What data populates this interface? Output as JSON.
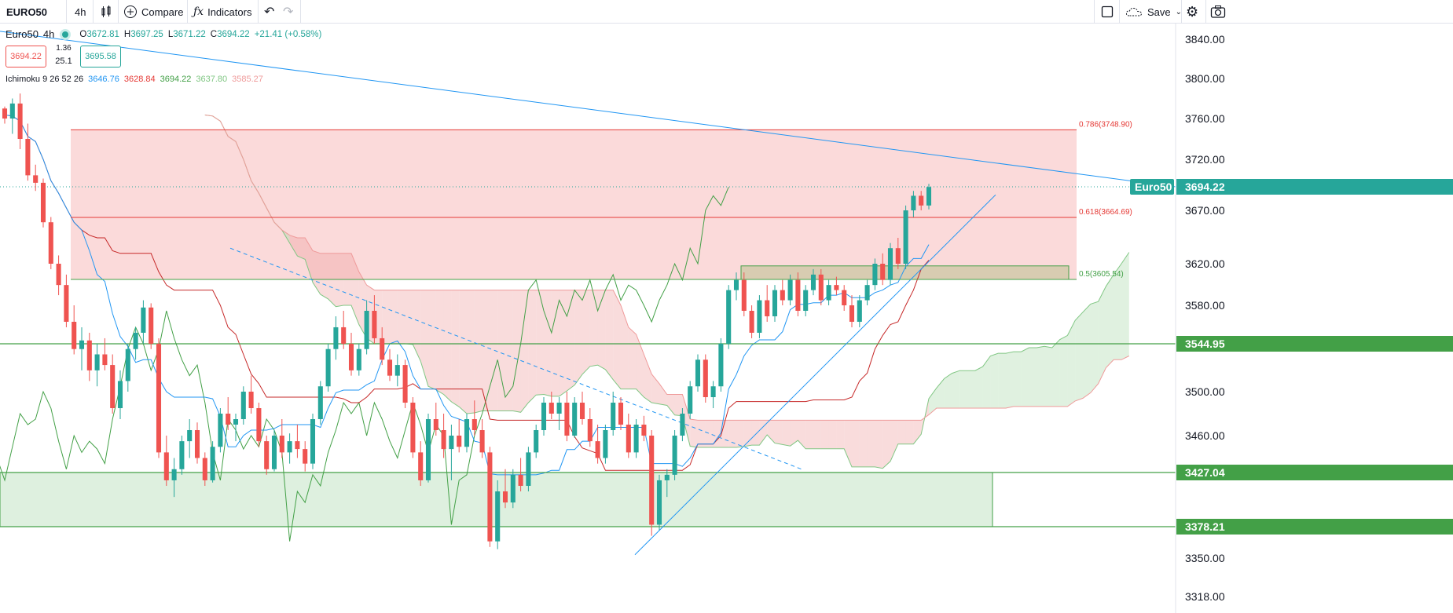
{
  "toolbar": {
    "symbol": "EURO50",
    "interval": "4h",
    "compare_label": "Compare",
    "indicators_label": "Indicators",
    "save_label": "Save"
  },
  "legend": {
    "name": "Euro50",
    "interval": "4h",
    "o_label": "O",
    "o": "3672.81",
    "h_label": "H",
    "h": "3697.25",
    "l_label": "L",
    "l": "3671.22",
    "c_label": "C",
    "c": "3694.22",
    "change": "+21.41 (+0.58%)",
    "bid": "3694.22",
    "spread": "1.36",
    "spread2": "25.1",
    "ask": "3695.58",
    "ichimoku_label": "Ichimoku 9 26 52 26",
    "ichimoku_values": [
      "3646.76",
      "3628.84",
      "3694.22",
      "3637.80",
      "3585.27"
    ],
    "ichimoku_colors": [
      "#2196f3",
      "#e53935",
      "#43a047",
      "#81c784",
      "#ef9a9a"
    ]
  },
  "chart_data": {
    "type": "candlestick",
    "symbol": "Euro50",
    "interval": "4h",
    "y_axis_ticks": [
      3840,
      3800,
      3760,
      3720,
      3670,
      3620,
      3580,
      3500,
      3460,
      3350,
      3318
    ],
    "y_axis_tick_labels": [
      "3840.00",
      "3800.00",
      "3760.00",
      "3720.00",
      "3670.00",
      "3620.00",
      "3580.00",
      "3500.00",
      "3460.00",
      "3350.00",
      "3318.00"
    ],
    "price_labels": [
      {
        "text": "3694.22",
        "value": 3694.22,
        "tag": "Euro50",
        "color": "#26a69a"
      },
      {
        "text": "3544.95",
        "value": 3544.95,
        "color": "#43a047"
      },
      {
        "text": "3427.04",
        "value": 3427.04,
        "color": "#43a047"
      },
      {
        "text": "3378.21",
        "value": 3378.21,
        "color": "#43a047"
      }
    ],
    "fib_levels": [
      {
        "label": "0.786(3748.90)",
        "value": 3748.9,
        "color": "#e53935"
      },
      {
        "label": "0.618(3664.69)",
        "value": 3664.69,
        "color": "#e53935"
      },
      {
        "label": "0.5(3605.54)",
        "value": 3605.54,
        "color": "#43a047"
      }
    ],
    "horizontal_lines": [
      3544.95,
      3427.04,
      3378.21
    ],
    "zones": [
      {
        "name": "fib-zone",
        "from": 3605.54,
        "to": 3748.9,
        "color": "#f8bbbb"
      },
      {
        "name": "support-zone",
        "from": 3378.21,
        "to": 3427.04,
        "color": "#c8e6c9"
      },
      {
        "name": "consolidation-box",
        "from": 3605.54,
        "to": 3618,
        "color": "#c9c6a0"
      }
    ],
    "candles": [
      [
        3770,
        3772,
        3755,
        3760
      ],
      [
        3760,
        3780,
        3745,
        3775
      ],
      [
        3775,
        3785,
        3730,
        3740
      ],
      [
        3740,
        3755,
        3700,
        3705
      ],
      [
        3705,
        3715,
        3690,
        3698
      ],
      [
        3698,
        3702,
        3655,
        3660
      ],
      [
        3660,
        3665,
        3615,
        3620
      ],
      [
        3620,
        3628,
        3590,
        3600
      ],
      [
        3600,
        3610,
        3560,
        3565
      ],
      [
        3565,
        3580,
        3535,
        3540
      ],
      [
        3540,
        3560,
        3520,
        3548
      ],
      [
        3548,
        3555,
        3510,
        3520
      ],
      [
        3520,
        3545,
        3505,
        3535
      ],
      [
        3535,
        3550,
        3520,
        3525
      ],
      [
        3525,
        3535,
        3480,
        3485
      ],
      [
        3485,
        3520,
        3475,
        3510
      ],
      [
        3510,
        3545,
        3500,
        3540
      ],
      [
        3540,
        3560,
        3530,
        3555
      ],
      [
        3555,
        3585,
        3545,
        3578
      ],
      [
        3578,
        3582,
        3540,
        3545
      ],
      [
        3545,
        3550,
        3440,
        3445
      ],
      [
        3445,
        3460,
        3415,
        3420
      ],
      [
        3420,
        3440,
        3405,
        3430
      ],
      [
        3430,
        3460,
        3425,
        3455
      ],
      [
        3455,
        3475,
        3440,
        3465
      ],
      [
        3465,
        3472,
        3435,
        3440
      ],
      [
        3440,
        3445,
        3415,
        3420
      ],
      [
        3420,
        3455,
        3418,
        3450
      ],
      [
        3450,
        3485,
        3445,
        3480
      ],
      [
        3480,
        3495,
        3465,
        3470
      ],
      [
        3470,
        3480,
        3455,
        3475
      ],
      [
        3475,
        3505,
        3470,
        3500
      ],
      [
        3500,
        3515,
        3480,
        3485
      ],
      [
        3485,
        3490,
        3450,
        3455
      ],
      [
        3455,
        3460,
        3425,
        3430
      ],
      [
        3430,
        3465,
        3428,
        3460
      ],
      [
        3460,
        3475,
        3440,
        3445
      ],
      [
        3445,
        3462,
        3435,
        3455
      ],
      [
        3455,
        3470,
        3440,
        3448
      ],
      [
        3448,
        3455,
        3428,
        3435
      ],
      [
        3435,
        3480,
        3430,
        3475
      ],
      [
        3475,
        3510,
        3470,
        3505
      ],
      [
        3505,
        3545,
        3500,
        3540
      ],
      [
        3540,
        3570,
        3530,
        3560
      ],
      [
        3560,
        3575,
        3540,
        3545
      ],
      [
        3545,
        3555,
        3515,
        3520
      ],
      [
        3520,
        3545,
        3515,
        3540
      ],
      [
        3540,
        3585,
        3535,
        3575
      ],
      [
        3575,
        3590,
        3545,
        3550
      ],
      [
        3550,
        3560,
        3525,
        3530
      ],
      [
        3530,
        3540,
        3510,
        3515
      ],
      [
        3515,
        3535,
        3505,
        3525
      ],
      [
        3525,
        3530,
        3485,
        3490
      ],
      [
        3490,
        3495,
        3440,
        3445
      ],
      [
        3445,
        3455,
        3415,
        3420
      ],
      [
        3420,
        3480,
        3418,
        3475
      ],
      [
        3475,
        3490,
        3460,
        3465
      ],
      [
        3465,
        3480,
        3440,
        3448
      ],
      [
        3448,
        3470,
        3420,
        3460
      ],
      [
        3460,
        3475,
        3445,
        3450
      ],
      [
        3450,
        3480,
        3445,
        3475
      ],
      [
        3475,
        3492,
        3460,
        3465
      ],
      [
        3465,
        3475,
        3440,
        3445
      ],
      [
        3445,
        3450,
        3360,
        3365
      ],
      [
        3365,
        3420,
        3358,
        3410
      ],
      [
        3410,
        3430,
        3395,
        3400
      ],
      [
        3400,
        3430,
        3395,
        3425
      ],
      [
        3425,
        3440,
        3410,
        3415
      ],
      [
        3415,
        3450,
        3410,
        3445
      ],
      [
        3445,
        3470,
        3440,
        3465
      ],
      [
        3465,
        3495,
        3460,
        3490
      ],
      [
        3490,
        3500,
        3475,
        3480
      ],
      [
        3480,
        3495,
        3465,
        3490
      ],
      [
        3490,
        3500,
        3455,
        3460
      ],
      [
        3460,
        3495,
        3458,
        3490
      ],
      [
        3490,
        3500,
        3470,
        3475
      ],
      [
        3475,
        3485,
        3450,
        3455
      ],
      [
        3455,
        3470,
        3435,
        3440
      ],
      [
        3440,
        3470,
        3435,
        3465
      ],
      [
        3465,
        3500,
        3460,
        3490
      ],
      [
        3490,
        3495,
        3465,
        3470
      ],
      [
        3470,
        3480,
        3440,
        3445
      ],
      [
        3445,
        3475,
        3440,
        3470
      ],
      [
        3470,
        3478,
        3455,
        3460
      ],
      [
        3460,
        3465,
        3370,
        3380
      ],
      [
        3380,
        3425,
        3375,
        3420
      ],
      [
        3420,
        3430,
        3405,
        3425
      ],
      [
        3425,
        3465,
        3420,
        3460
      ],
      [
        3460,
        3485,
        3455,
        3480
      ],
      [
        3480,
        3510,
        3475,
        3505
      ],
      [
        3505,
        3535,
        3500,
        3530
      ],
      [
        3530,
        3535,
        3490,
        3495
      ],
      [
        3495,
        3510,
        3485,
        3505
      ],
      [
        3505,
        3550,
        3500,
        3545
      ],
      [
        3545,
        3600,
        3540,
        3595
      ],
      [
        3595,
        3612,
        3585,
        3605
      ],
      [
        3605,
        3612,
        3570,
        3575
      ],
      [
        3575,
        3580,
        3550,
        3555
      ],
      [
        3555,
        3590,
        3550,
        3585
      ],
      [
        3585,
        3600,
        3565,
        3570
      ],
      [
        3570,
        3600,
        3565,
        3595
      ],
      [
        3595,
        3605,
        3580,
        3585
      ],
      [
        3585,
        3610,
        3580,
        3605
      ],
      [
        3605,
        3612,
        3570,
        3575
      ],
      [
        3575,
        3600,
        3570,
        3595
      ],
      [
        3595,
        3615,
        3590,
        3610
      ],
      [
        3610,
        3615,
        3580,
        3585
      ],
      [
        3585,
        3605,
        3580,
        3600
      ],
      [
        3600,
        3608,
        3590,
        3595
      ],
      [
        3595,
        3600,
        3575,
        3580
      ],
      [
        3580,
        3590,
        3560,
        3565
      ],
      [
        3565,
        3590,
        3560,
        3585
      ],
      [
        3585,
        3605,
        3580,
        3600
      ],
      [
        3600,
        3625,
        3595,
        3620
      ],
      [
        3620,
        3630,
        3600,
        3605
      ],
      [
        3605,
        3640,
        3600,
        3635
      ],
      [
        3635,
        3645,
        3615,
        3620
      ],
      [
        3620,
        3675,
        3615,
        3670
      ],
      [
        3670,
        3690,
        3665,
        3685
      ],
      [
        3685,
        3690,
        3670,
        3675
      ],
      [
        3675,
        3697,
        3671,
        3694
      ]
    ]
  }
}
